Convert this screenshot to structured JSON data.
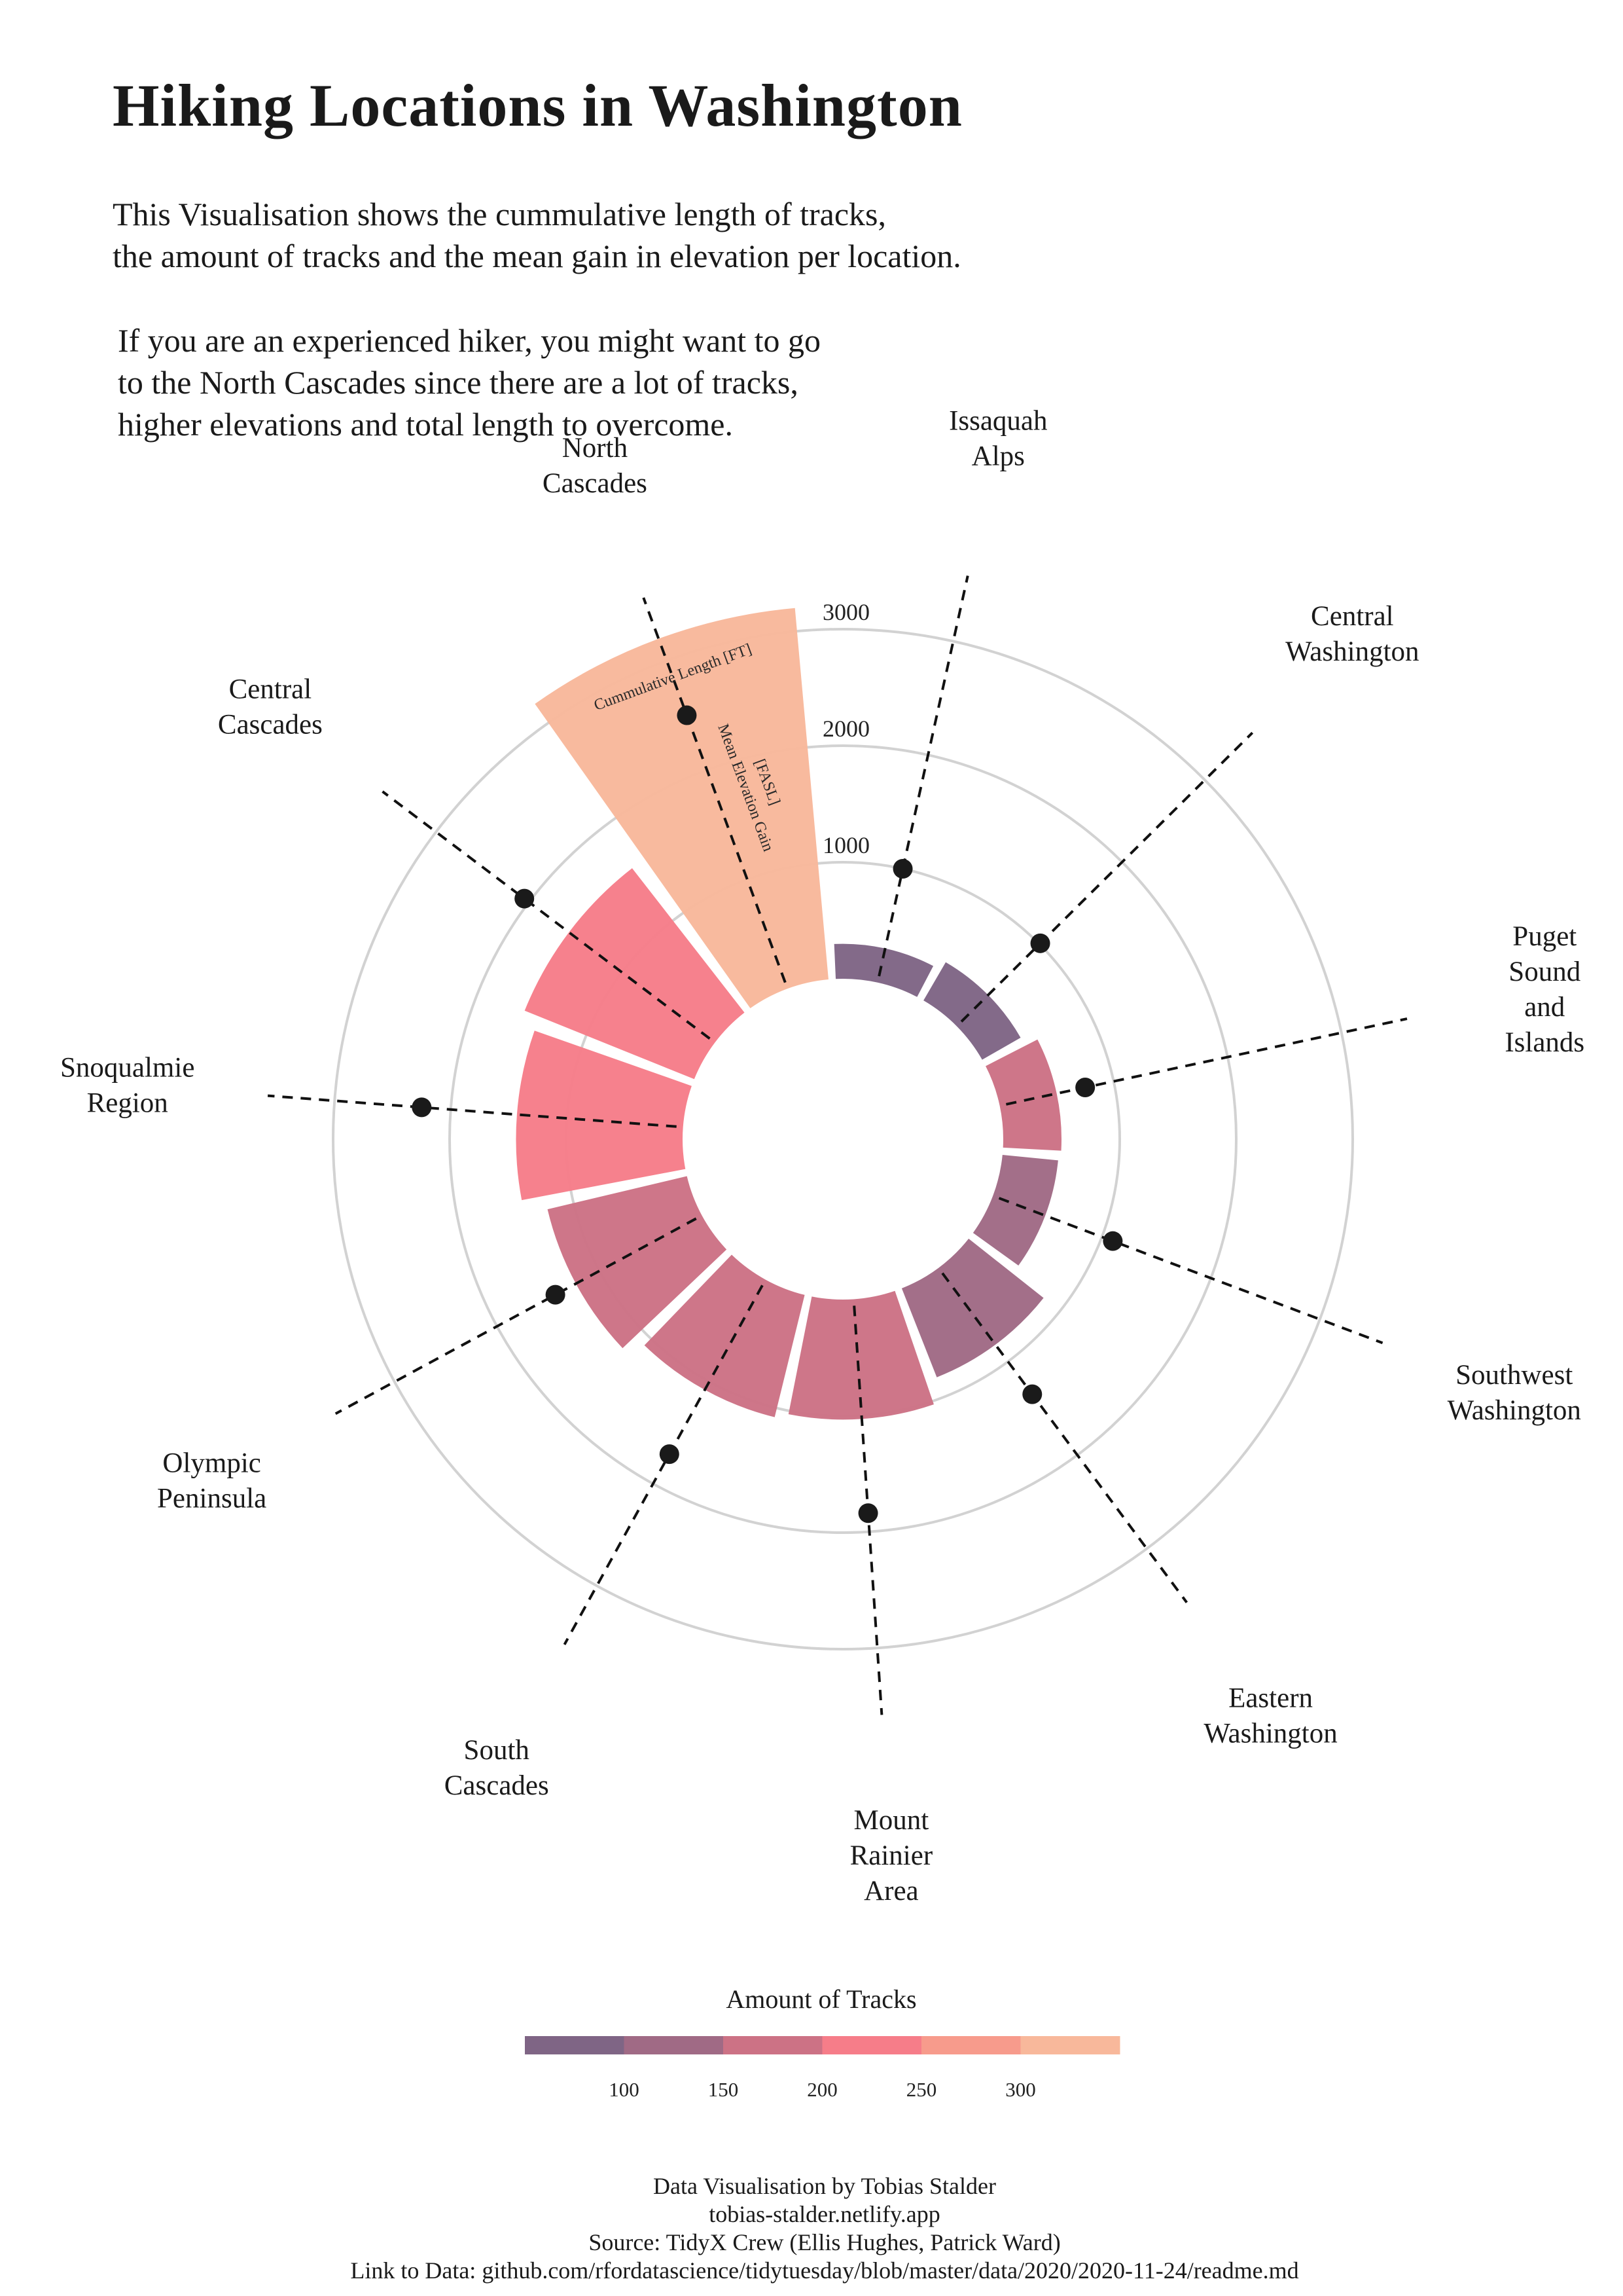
{
  "title": "Hiking Locations in Washington",
  "subtitle": {
    "line1": "This Visualisation shows the cummulative length of tracks,",
    "line2": "the amount of tracks and the mean gain in elevation per location.",
    "line3": "If you are an experienced hiker, you might want to go",
    "line4": "to the North Cascades since there are a lot of tracks,",
    "line5": "higher elevations and total length to overcome."
  },
  "chart_data": {
    "type": "radial-bar",
    "title": "Hiking Locations in Washington",
    "radial_axis": {
      "ticks": [
        1000,
        2000,
        3000
      ],
      "labels": [
        "1000",
        "2000",
        "3000"
      ],
      "range": [
        0,
        3800
      ]
    },
    "annotations": {
      "bar_label": "Cummulative Length [FT]",
      "line_label_1": "Mean Elevation Gain",
      "line_label_2": "[FASL]"
    },
    "locations": [
      {
        "name": "Issaquah Alps",
        "label_lines": [
          "Issaquah",
          "Alps"
        ],
        "length": 300,
        "tracks": 77,
        "elevation": 1000
      },
      {
        "name": "Central Washington",
        "label_lines": [
          "Central",
          "Washington"
        ],
        "length": 380,
        "tracks": 80,
        "elevation": 1010
      },
      {
        "name": "Puget Sound and Islands",
        "label_lines": [
          "Puget",
          "Sound",
          "and",
          "Islands"
        ],
        "length": 500,
        "tracks": 190,
        "elevation": 750
      },
      {
        "name": "Southwest Washington",
        "label_lines": [
          "Southwest",
          "Washington"
        ],
        "length": 480,
        "tracks": 110,
        "elevation": 1100
      },
      {
        "name": "Eastern Washington",
        "label_lines": [
          "Eastern",
          "Washington"
        ],
        "length": 820,
        "tracks": 125,
        "elevation": 1350
      },
      {
        "name": "Mount Rainier Area",
        "label_lines": [
          "Mount",
          "Rainier",
          "Area"
        ],
        "length": 1030,
        "tracks": 190,
        "elevation": 1840
      },
      {
        "name": "South Cascades",
        "label_lines": [
          "South",
          "Cascades"
        ],
        "length": 1080,
        "tracks": 170,
        "elevation": 1710
      },
      {
        "name": "Olympic Peninsula",
        "label_lines": [
          "Olympic",
          "Peninsula"
        ],
        "length": 1230,
        "tracks": 195,
        "elevation": 1430
      },
      {
        "name": "Snoqualmie Region",
        "label_lines": [
          "Snoqualmie",
          "Region"
        ],
        "length": 1430,
        "tracks": 215,
        "elevation": 2250
      },
      {
        "name": "Central Cascades",
        "label_lines": [
          "Central",
          "Cascades"
        ],
        "length": 1570,
        "tracks": 225,
        "elevation": 2050
      },
      {
        "name": "North Cascades",
        "label_lines": [
          "North",
          "Cascades"
        ],
        "length": 3200,
        "tracks": 350,
        "elevation": 2500
      }
    ],
    "legend": {
      "title": "Amount of Tracks",
      "ticks": [
        100,
        150,
        200,
        250,
        300
      ],
      "tick_labels": [
        "100",
        "150",
        "200",
        "250",
        "300"
      ],
      "range": [
        50,
        350
      ],
      "colors": [
        "#7f6585",
        "#a06a85",
        "#cc7285",
        "#f67d89",
        "#f79b8c",
        "#f8b89b"
      ]
    }
  },
  "credits": {
    "line1": "Data Visualisation by Tobias Stalder",
    "line2": "tobias-stalder.netlify.app",
    "line3": "Source: TidyX Crew (Ellis Hughes, Patrick Ward)",
    "line4": "Link to Data: github.com/rfordatascience/tidytuesday/blob/master/data/2020/2020-11-24/readme.md"
  }
}
